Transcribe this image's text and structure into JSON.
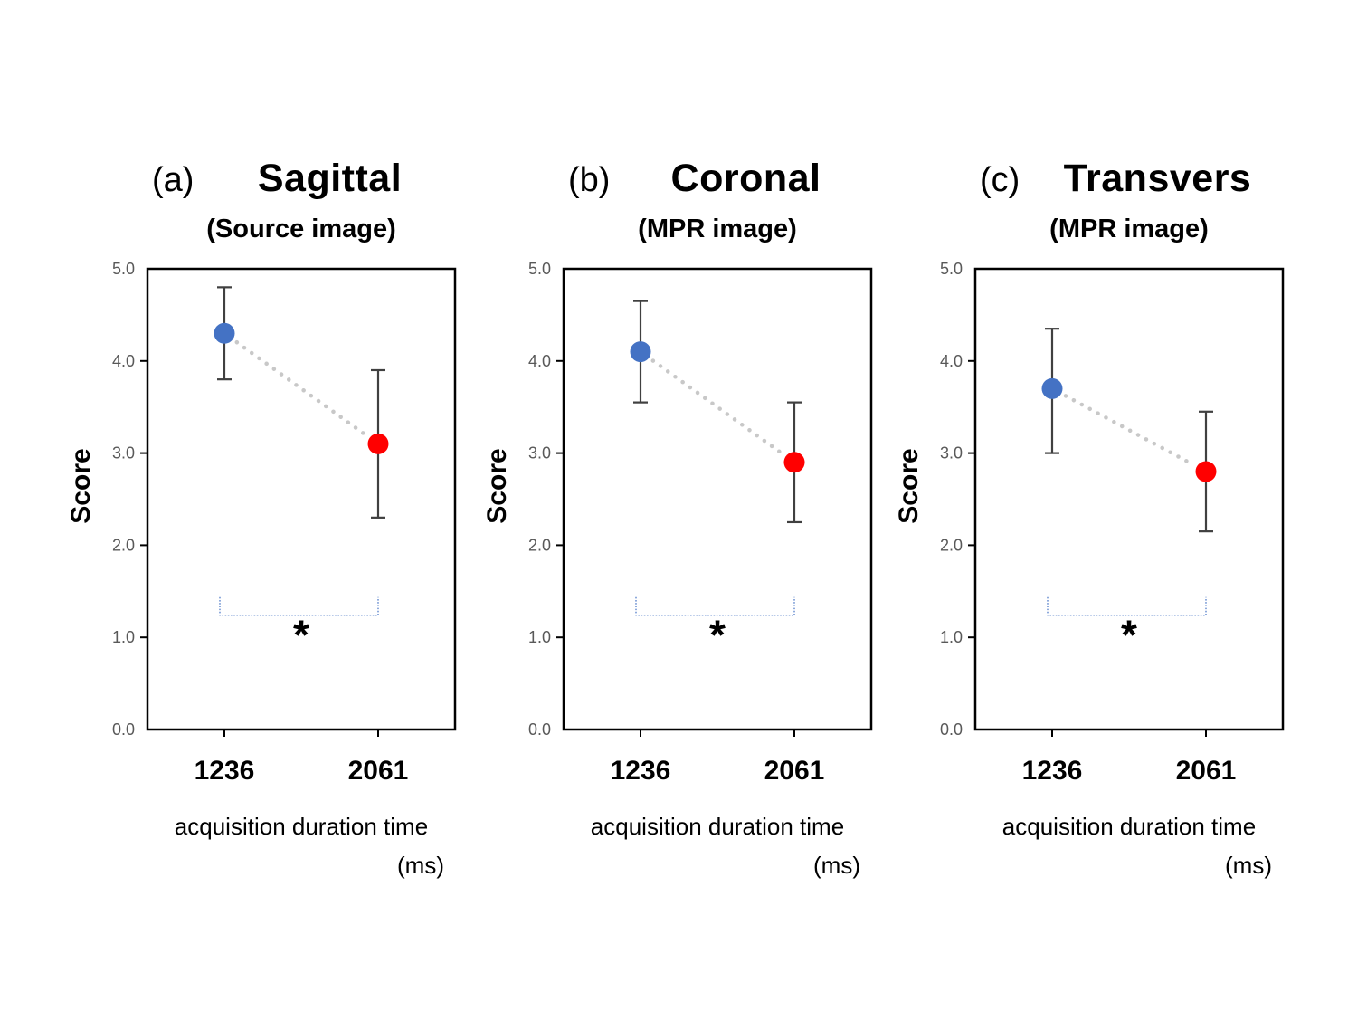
{
  "page": {
    "background": "#FFFFFF"
  },
  "style": {
    "marker_blue": "#4472C4",
    "marker_red": "#FF0000",
    "error_bar_color": "#404040",
    "connector_color": "#C8C8C8",
    "axis_color": "#000000",
    "tick_label_color": "#595959",
    "bracket_color": "#4472C4",
    "text_color": "#000000"
  },
  "chart_data": [
    {
      "type": "scatter",
      "panel_label": "(a)",
      "title": "Sagittal",
      "subtitle": "(Source image)",
      "ylabel": "Score",
      "xlabel_line1": "acquisition duration time",
      "xlabel_line2": "(ms)",
      "categories": [
        "1236",
        "2061"
      ],
      "ylim": [
        0.0,
        5.0
      ],
      "ytick_labels": [
        "0.0",
        "1.0",
        "2.0",
        "3.0",
        "4.0",
        "5.0"
      ],
      "grid": false,
      "legend": null,
      "series": [
        {
          "category": "1236",
          "value": 4.3,
          "err_low": 3.8,
          "err_high": 4.8,
          "marker_color": "#4472C4"
        },
        {
          "category": "2061",
          "value": 3.1,
          "err_low": 2.3,
          "err_high": 3.9,
          "marker_color": "#FF0000"
        }
      ],
      "significance": {
        "label": "*",
        "bracket_y": 1.24,
        "asterisk_y": 0.87
      }
    },
    {
      "type": "scatter",
      "panel_label": "(b)",
      "title": "Coronal",
      "subtitle": "(MPR image)",
      "ylabel": "Score",
      "xlabel_line1": "acquisition duration time",
      "xlabel_line2": "(ms)",
      "categories": [
        "1236",
        "2061"
      ],
      "ylim": [
        0.0,
        5.0
      ],
      "ytick_labels": [
        "0.0",
        "1.0",
        "2.0",
        "3.0",
        "4.0",
        "5.0"
      ],
      "grid": false,
      "legend": null,
      "series": [
        {
          "category": "1236",
          "value": 4.1,
          "err_low": 3.55,
          "err_high": 4.65,
          "marker_color": "#4472C4"
        },
        {
          "category": "2061",
          "value": 2.9,
          "err_low": 2.25,
          "err_high": 3.55,
          "marker_color": "#FF0000"
        }
      ],
      "significance": {
        "label": "*",
        "bracket_y": 1.24,
        "asterisk_y": 0.87
      }
    },
    {
      "type": "scatter",
      "panel_label": "(c)",
      "title": "Transvers",
      "subtitle": "(MPR image)",
      "ylabel": "Score",
      "xlabel_line1": "acquisition duration time",
      "xlabel_line2": "(ms)",
      "categories": [
        "1236",
        "2061"
      ],
      "ylim": [
        0.0,
        5.0
      ],
      "ytick_labels": [
        "0.0",
        "1.0",
        "2.0",
        "3.0",
        "4.0",
        "5.0"
      ],
      "grid": false,
      "legend": null,
      "series": [
        {
          "category": "1236",
          "value": 3.7,
          "err_low": 3.0,
          "err_high": 4.35,
          "marker_color": "#4472C4"
        },
        {
          "category": "2061",
          "value": 2.8,
          "err_low": 2.15,
          "err_high": 3.45,
          "marker_color": "#FF0000"
        }
      ],
      "significance": {
        "label": "*",
        "bracket_y": 1.24,
        "asterisk_y": 0.87
      }
    }
  ]
}
